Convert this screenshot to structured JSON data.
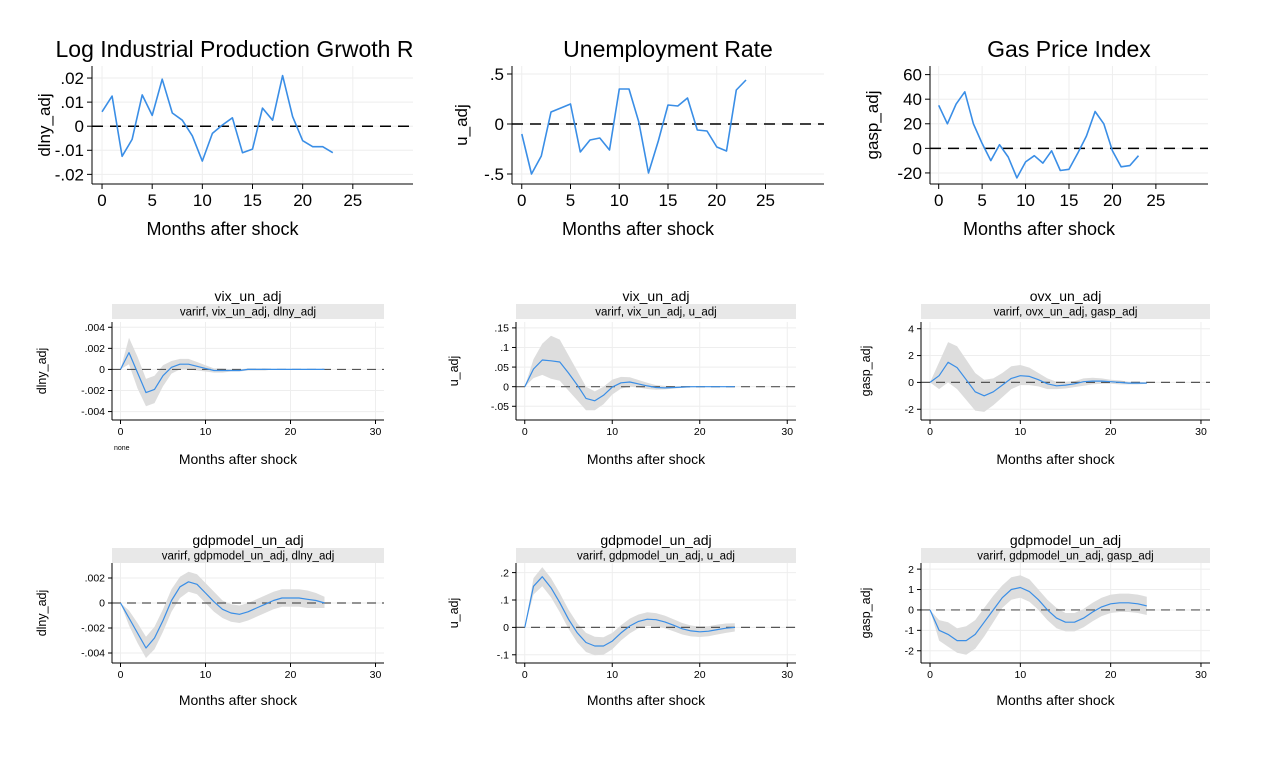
{
  "colors": {
    "line": "#3a8ee6",
    "band": "#dddddd",
    "zero": "#555555",
    "grid": "#eeeeee",
    "strip": "#e8e8e8"
  },
  "chart_data": [
    {
      "type": "line",
      "title": "Log Industrial Production Grwoth R",
      "subtitle": "",
      "xlabel": "Months after shock",
      "ylabel": "dlny_adj",
      "xlim": [
        -1,
        31
      ],
      "ylim": [
        -0.024,
        0.025
      ],
      "xticks": [
        0,
        5,
        10,
        15,
        20,
        25
      ],
      "xtick_labels": [
        "0",
        "5",
        "10",
        "15",
        "20",
        "25"
      ],
      "yticks": [
        0.02,
        0.01,
        0,
        -0.01,
        -0.02
      ],
      "ytick_labels": [
        ".02",
        ".01",
        "0",
        "-.01",
        "-.02"
      ],
      "x": [
        0,
        1,
        2,
        3,
        4,
        5,
        6,
        7,
        8,
        9,
        10,
        11,
        12,
        13,
        14,
        15,
        16,
        17,
        18,
        19,
        20,
        21,
        22,
        23
      ],
      "y": [
        0.006,
        0.0125,
        -0.0125,
        -0.0055,
        0.013,
        0.0045,
        0.0195,
        0.0055,
        0.0025,
        -0.004,
        -0.0145,
        -0.003,
        0.0005,
        0.0035,
        -0.011,
        -0.0095,
        0.0075,
        0.0025,
        0.021,
        0.004,
        -0.006,
        -0.0085,
        -0.0085,
        -0.011
      ],
      "grid": true,
      "note": ""
    },
    {
      "type": "line",
      "title": "Unemployment Rate",
      "subtitle": "",
      "xlabel": "Months after shock",
      "ylabel": "u_adj",
      "xlim": [
        -1,
        31
      ],
      "ylim": [
        -0.6,
        0.58
      ],
      "xticks": [
        0,
        5,
        10,
        15,
        20,
        25
      ],
      "xtick_labels": [
        "0",
        "5",
        "10",
        "15",
        "20",
        "25"
      ],
      "yticks": [
        0.5,
        0,
        -0.5
      ],
      "ytick_labels": [
        ".5",
        "0",
        "-.5"
      ],
      "x": [
        0,
        1,
        2,
        3,
        4,
        5,
        6,
        7,
        8,
        9,
        10,
        11,
        12,
        13,
        14,
        15,
        16,
        17,
        18,
        19,
        20,
        21,
        22,
        23
      ],
      "y": [
        -0.1,
        -0.5,
        -0.32,
        0.12,
        0.16,
        0.2,
        -0.28,
        -0.16,
        -0.14,
        -0.26,
        0.35,
        0.35,
        0.02,
        -0.49,
        -0.17,
        0.19,
        0.18,
        0.26,
        -0.06,
        -0.07,
        -0.23,
        -0.27,
        0.34,
        0.44
      ],
      "grid": true,
      "note": ""
    },
    {
      "type": "line",
      "title": "Gas Price Index",
      "subtitle": "",
      "xlabel": "Months after shock",
      "ylabel": "gasp_adj",
      "xlim": [
        -1,
        31
      ],
      "ylim": [
        -29,
        67
      ],
      "xticks": [
        0,
        5,
        10,
        15,
        20,
        25
      ],
      "xtick_labels": [
        "0",
        "5",
        "10",
        "15",
        "20",
        "25"
      ],
      "yticks": [
        60,
        40,
        20,
        0,
        -20
      ],
      "ytick_labels": [
        "60",
        "40",
        "20",
        "0",
        "-20"
      ],
      "x": [
        0,
        1,
        2,
        3,
        4,
        5,
        6,
        7,
        8,
        9,
        10,
        11,
        12,
        13,
        14,
        15,
        16,
        17,
        18,
        19,
        20,
        21,
        22,
        23
      ],
      "y": [
        35,
        20,
        36,
        46,
        20,
        4,
        -10,
        3,
        -7,
        -24,
        -11,
        -6,
        -12,
        -2,
        -18,
        -17,
        -4,
        10,
        30,
        20,
        -2,
        -15,
        -14,
        -6
      ],
      "grid": true,
      "note": ""
    },
    {
      "type": "area",
      "title": "vix_un_adj",
      "subtitle": "varirf, vix_un_adj, dlny_adj",
      "xlabel": "Months after shock",
      "ylabel": "dlny_adj",
      "xlim": [
        -1,
        31
      ],
      "ylim": [
        -0.0048,
        0.0045
      ],
      "xticks": [
        0,
        10,
        20,
        30
      ],
      "xtick_labels": [
        "0",
        "10",
        "20",
        "30"
      ],
      "yticks": [
        0.004,
        0.002,
        0,
        -0.002,
        -0.004
      ],
      "ytick_labels": [
        ".004",
        ".002",
        "0",
        "-.002",
        "-.004"
      ],
      "x": [
        0,
        1,
        2,
        3,
        4,
        5,
        6,
        7,
        8,
        9,
        10,
        11,
        12,
        13,
        14,
        15,
        16,
        17,
        18,
        19,
        20,
        21,
        22,
        23,
        24
      ],
      "y": [
        0,
        0.0016,
        -0.0003,
        -0.0022,
        -0.0019,
        -0.0006,
        0.0002,
        0.0005,
        0.0005,
        0.0003,
        0.0001,
        -0.0001,
        -0.0001,
        -0.0001,
        -0.0001,
        0,
        0,
        0,
        0,
        0,
        0,
        0,
        0,
        0,
        0
      ],
      "lower": [
        0,
        0.0005,
        -0.0018,
        -0.0035,
        -0.0032,
        -0.0016,
        -0.0004,
        0.0,
        0.0,
        -0.0001,
        -0.0002,
        -0.0003,
        -0.0003,
        -0.0002,
        -0.0002,
        -0.0001,
        -0.0001,
        -0.0001,
        0,
        0,
        0,
        0,
        0,
        0,
        0
      ],
      "upper": [
        0,
        0.003,
        0.0012,
        -0.0009,
        -0.0006,
        0.0004,
        0.0008,
        0.001,
        0.001,
        0.0007,
        0.0004,
        0.0001,
        0.0001,
        0,
        0,
        0.0001,
        0.0001,
        0.0001,
        0,
        0,
        0,
        0,
        0,
        0,
        0
      ],
      "grid": true,
      "note": "none"
    },
    {
      "type": "area",
      "title": "vix_un_adj",
      "subtitle": "varirf, vix_un_adj, u_adj",
      "xlabel": "Months after shock",
      "ylabel": "u_adj",
      "xlim": [
        -1,
        31
      ],
      "ylim": [
        -0.085,
        0.165
      ],
      "xticks": [
        0,
        10,
        20,
        30
      ],
      "xtick_labels": [
        "0",
        "10",
        "20",
        "30"
      ],
      "yticks": [
        0.15,
        0.1,
        0.05,
        0,
        -0.05
      ],
      "ytick_labels": [
        ".15",
        ".1",
        ".05",
        "0",
        "-.05"
      ],
      "x": [
        0,
        1,
        2,
        3,
        4,
        5,
        6,
        7,
        8,
        9,
        10,
        11,
        12,
        13,
        14,
        15,
        16,
        17,
        18,
        19,
        20,
        21,
        22,
        23,
        24
      ],
      "y": [
        0,
        0.045,
        0.068,
        0.066,
        0.063,
        0.035,
        0.004,
        -0.03,
        -0.036,
        -0.022,
        -0.001,
        0.01,
        0.012,
        0.007,
        0.002,
        -0.002,
        -0.003,
        -0.002,
        -0.001,
        0,
        0,
        0,
        0,
        0,
        0
      ],
      "lower": [
        0,
        0.022,
        0.03,
        0.02,
        0.015,
        -0.01,
        -0.035,
        -0.06,
        -0.06,
        -0.045,
        -0.02,
        -0.005,
        0,
        -0.002,
        -0.006,
        -0.008,
        -0.007,
        -0.005,
        -0.003,
        -0.002,
        -0.001,
        -0.001,
        0,
        0,
        0
      ],
      "upper": [
        0,
        0.07,
        0.11,
        0.13,
        0.12,
        0.08,
        0.04,
        0.0,
        -0.012,
        0.0,
        0.018,
        0.025,
        0.024,
        0.017,
        0.01,
        0.004,
        0.002,
        0.001,
        0.001,
        0.001,
        0.001,
        0.001,
        0,
        0,
        0
      ],
      "grid": true,
      "note": ""
    },
    {
      "type": "area",
      "title": "ovx_un_adj",
      "subtitle": "varirf, ovx_un_adj, gasp_adj",
      "xlabel": "Months after shock",
      "ylabel": "gasp_adj",
      "xlim": [
        -1,
        31
      ],
      "ylim": [
        -2.8,
        4.5
      ],
      "xticks": [
        0,
        10,
        20,
        30
      ],
      "xtick_labels": [
        "0",
        "10",
        "20",
        "30"
      ],
      "yticks": [
        4,
        2,
        0,
        -2
      ],
      "ytick_labels": [
        "4",
        "2",
        "0",
        "-2"
      ],
      "x": [
        0,
        1,
        2,
        3,
        4,
        5,
        6,
        7,
        8,
        9,
        10,
        11,
        12,
        13,
        14,
        15,
        16,
        17,
        18,
        19,
        20,
        21,
        22,
        23,
        24
      ],
      "y": [
        0,
        0.5,
        1.5,
        1.1,
        0.2,
        -0.7,
        -1.0,
        -0.7,
        -0.2,
        0.3,
        0.5,
        0.45,
        0.2,
        -0.1,
        -0.25,
        -0.2,
        -0.1,
        0.05,
        0.1,
        0.1,
        0.05,
        0,
        -0.05,
        -0.05,
        -0.05
      ],
      "lower": [
        0,
        -0.5,
        0.0,
        -0.5,
        -1.3,
        -2.1,
        -2.2,
        -1.7,
        -1.1,
        -0.5,
        -0.2,
        -0.2,
        -0.3,
        -0.5,
        -0.5,
        -0.45,
        -0.35,
        -0.25,
        -0.15,
        -0.1,
        -0.1,
        -0.15,
        -0.15,
        -0.15,
        -0.1
      ],
      "upper": [
        0,
        1.5,
        3.0,
        2.7,
        1.7,
        0.7,
        0.2,
        0.3,
        0.7,
        1.2,
        1.3,
        1.1,
        0.7,
        0.3,
        0.05,
        0.05,
        0.1,
        0.3,
        0.35,
        0.3,
        0.2,
        0.15,
        0.05,
        0.05,
        0.0
      ],
      "grid": true,
      "note": ""
    },
    {
      "type": "area",
      "title": "gdpmodel_un_adj",
      "subtitle": "varirf, gdpmodel_un_adj, dlny_adj",
      "xlabel": "Months after shock",
      "ylabel": "dlny_adj",
      "xlim": [
        -1,
        31
      ],
      "ylim": [
        -0.0048,
        0.0032
      ],
      "xticks": [
        0,
        10,
        20,
        30
      ],
      "xtick_labels": [
        "0",
        "10",
        "20",
        "30"
      ],
      "yticks": [
        0.002,
        0,
        -0.002,
        -0.004
      ],
      "ytick_labels": [
        ".002",
        "0",
        "-.002",
        "-.004"
      ],
      "x": [
        0,
        1,
        2,
        3,
        4,
        5,
        6,
        7,
        8,
        9,
        10,
        11,
        12,
        13,
        14,
        15,
        16,
        17,
        18,
        19,
        20,
        21,
        22,
        23,
        24
      ],
      "y": [
        0,
        -0.0012,
        -0.0024,
        -0.0036,
        -0.0028,
        -0.0014,
        0.0002,
        0.0013,
        0.0017,
        0.0015,
        0.0008,
        0.0001,
        -0.0005,
        -0.0008,
        -0.0009,
        -0.0007,
        -0.0004,
        -0.0001,
        0.0002,
        0.0004,
        0.0004,
        0.0004,
        0.0003,
        0.0002,
        0.0
      ],
      "lower": [
        0,
        -0.0018,
        -0.0032,
        -0.0044,
        -0.0037,
        -0.0023,
        -0.0007,
        0.0004,
        0.0009,
        0.0007,
        0.0,
        -0.0007,
        -0.0012,
        -0.0015,
        -0.0016,
        -0.0014,
        -0.0011,
        -0.0008,
        -0.0005,
        -0.0003,
        -0.0003,
        -0.0003,
        -0.0004,
        -0.0004,
        -0.0004
      ],
      "upper": [
        0,
        -0.0006,
        -0.0016,
        -0.0027,
        -0.0019,
        -0.0005,
        0.0011,
        0.0021,
        0.0025,
        0.0023,
        0.0016,
        0.0009,
        0.0002,
        -0.0001,
        -0.0002,
        0.0,
        0.0003,
        0.0006,
        0.0009,
        0.0011,
        0.0011,
        0.0011,
        0.001,
        0.0008,
        0.0005
      ],
      "grid": true,
      "note": ""
    },
    {
      "type": "area",
      "title": "gdpmodel_un_adj",
      "subtitle": "varirf, gdpmodel_un_adj, u_adj",
      "xlabel": "Months after shock",
      "ylabel": "u_adj",
      "xlim": [
        -1,
        31
      ],
      "ylim": [
        -0.13,
        0.235
      ],
      "xticks": [
        0,
        10,
        20,
        30
      ],
      "xtick_labels": [
        "0",
        "10",
        "20",
        "30"
      ],
      "yticks": [
        0.2,
        0.1,
        0,
        -0.1
      ],
      "ytick_labels": [
        ".2",
        ".1",
        "0",
        "-.1"
      ],
      "x": [
        0,
        1,
        2,
        3,
        4,
        5,
        6,
        7,
        8,
        9,
        10,
        11,
        12,
        13,
        14,
        15,
        16,
        17,
        18,
        19,
        20,
        21,
        22,
        23,
        24
      ],
      "y": [
        0,
        0.15,
        0.185,
        0.145,
        0.09,
        0.03,
        -0.02,
        -0.055,
        -0.068,
        -0.068,
        -0.05,
        -0.02,
        0.005,
        0.022,
        0.03,
        0.028,
        0.02,
        0.008,
        -0.005,
        -0.013,
        -0.016,
        -0.014,
        -0.008,
        -0.003,
        0.0
      ],
      "lower": [
        0,
        0.12,
        0.15,
        0.11,
        0.055,
        -0.005,
        -0.055,
        -0.09,
        -0.102,
        -0.1,
        -0.08,
        -0.048,
        -0.022,
        -0.003,
        0.005,
        0.004,
        -0.003,
        -0.014,
        -0.026,
        -0.033,
        -0.035,
        -0.032,
        -0.026,
        -0.02,
        -0.015
      ],
      "upper": [
        0,
        0.18,
        0.22,
        0.18,
        0.125,
        0.065,
        0.015,
        -0.02,
        -0.034,
        -0.036,
        -0.02,
        0.008,
        0.032,
        0.047,
        0.055,
        0.052,
        0.043,
        0.03,
        0.016,
        0.007,
        0.003,
        0.004,
        0.01,
        0.014,
        0.015
      ],
      "grid": true,
      "note": ""
    },
    {
      "type": "area",
      "title": "gdpmodel_un_adj",
      "subtitle": "varirf, gdpmodel_un_adj, gasp_adj",
      "xlabel": "Months after shock",
      "ylabel": "gasp_adj",
      "xlim": [
        -1,
        31
      ],
      "ylim": [
        -2.6,
        2.3
      ],
      "xticks": [
        0,
        10,
        20,
        30
      ],
      "xtick_labels": [
        "0",
        "10",
        "20",
        "30"
      ],
      "yticks": [
        2,
        1,
        0,
        -1,
        -2
      ],
      "ytick_labels": [
        "2",
        "1",
        "0",
        "-1",
        "-2"
      ],
      "x": [
        0,
        1,
        2,
        3,
        4,
        5,
        6,
        7,
        8,
        9,
        10,
        11,
        12,
        13,
        14,
        15,
        16,
        17,
        18,
        19,
        20,
        21,
        22,
        23,
        24
      ],
      "y": [
        0,
        -1.0,
        -1.2,
        -1.5,
        -1.5,
        -1.2,
        -0.6,
        0.0,
        0.6,
        1.0,
        1.1,
        0.9,
        0.5,
        0.0,
        -0.4,
        -0.6,
        -0.6,
        -0.4,
        -0.1,
        0.15,
        0.3,
        0.35,
        0.35,
        0.3,
        0.2
      ],
      "lower": [
        0,
        -1.5,
        -1.8,
        -2.1,
        -2.2,
        -1.9,
        -1.3,
        -0.6,
        0.1,
        0.5,
        0.6,
        0.4,
        0.0,
        -0.5,
        -0.9,
        -1.05,
        -1.05,
        -0.85,
        -0.55,
        -0.3,
        -0.15,
        -0.1,
        -0.1,
        -0.15,
        -0.25
      ],
      "upper": [
        0,
        -0.5,
        -0.6,
        -0.9,
        -0.8,
        -0.5,
        0.1,
        0.7,
        1.2,
        1.6,
        1.7,
        1.5,
        1.0,
        0.5,
        0.1,
        -0.15,
        -0.15,
        0.05,
        0.35,
        0.6,
        0.75,
        0.8,
        0.8,
        0.75,
        0.65
      ],
      "grid": true,
      "note": ""
    }
  ]
}
